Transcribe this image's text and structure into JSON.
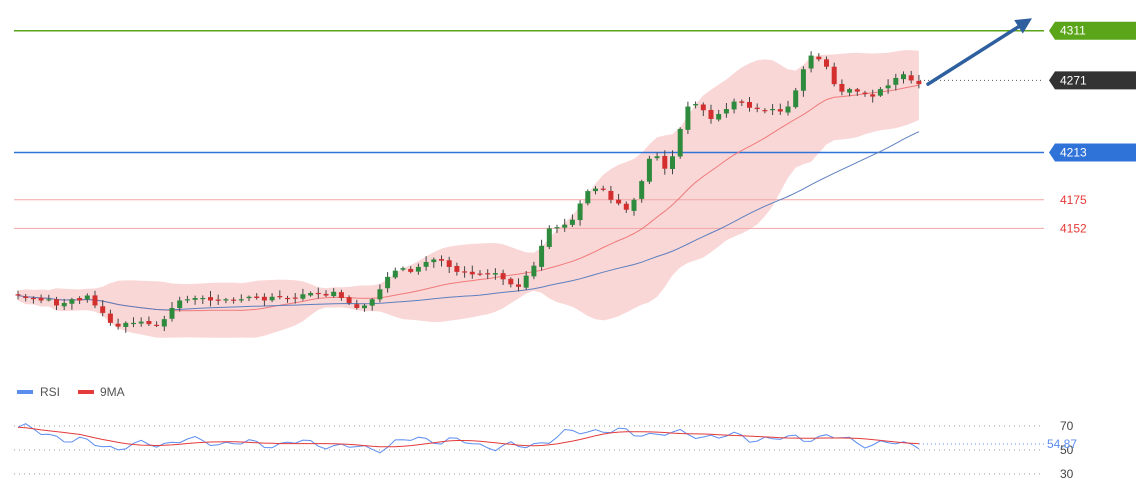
{
  "chart_data": {
    "type": "candlestick",
    "price_ylim": [
      4059,
      4318
    ],
    "levels": [
      {
        "name": "resistance-4311",
        "value": 4311,
        "label": "4311",
        "color": "#5aa51a",
        "style": "tag",
        "text_color": "#ffffff"
      },
      {
        "name": "resistance-4271",
        "value": 4271,
        "label": "4271",
        "color": "#333333",
        "style": "dotted-tag",
        "text_color": "#ffffff"
      },
      {
        "name": "support-4213",
        "value": 4213,
        "label": "4213",
        "color": "#2f73d9",
        "style": "tag",
        "text_color": "#ffffff"
      },
      {
        "name": "support-4175",
        "value": 4175,
        "label": "4175",
        "color": "#f2a6a6",
        "style": "text",
        "text_color": "#e53935"
      },
      {
        "name": "support-4152",
        "value": 4152,
        "label": "4152",
        "color": "#f2a6a6",
        "style": "text",
        "text_color": "#e53935"
      }
    ],
    "close_series": [
      4098,
      4096,
      4096,
      4094,
      4095,
      4090,
      4092,
      4095,
      4094,
      4098,
      4090,
      4084,
      4076,
      4073,
      4076,
      4076,
      4077,
      4075,
      4074,
      4079,
      4088,
      4094,
      4095,
      4096,
      4096,
      4094,
      4094,
      4095,
      4094,
      4095,
      4097,
      4096,
      4094,
      4097,
      4097,
      4096,
      4096,
      4099,
      4100,
      4100,
      4098,
      4101,
      4096,
      4092,
      4088,
      4090,
      4095,
      4103,
      4113,
      4118,
      4120,
      4117,
      4121,
      4125,
      4127,
      4126,
      4121,
      4117,
      4117,
      4115,
      4115,
      4115,
      4116,
      4111,
      4107,
      4105,
      4114,
      4122,
      4138,
      4152,
      4153,
      4155,
      4159,
      4172,
      4182,
      4184,
      4183,
      4175,
      4172,
      4167,
      4175,
      4190,
      4208,
      4210,
      4200,
      4210,
      4232,
      4250,
      4252,
      4247,
      4240,
      4244,
      4248,
      4254,
      4253,
      4249,
      4248,
      4247,
      4248,
      4246,
      4250,
      4263,
      4280,
      4291,
      4288,
      4282,
      4268,
      4262,
      4264,
      4262,
      4260,
      4258,
      4264,
      4267,
      4273,
      4276,
      4271,
      4268
    ],
    "candles_ohlc": "derived from close_series",
    "indicators": {
      "bollinger_bands": {
        "color": "#f8caca",
        "period": 20
      },
      "moving_average_fast": {
        "color": "#f07a7a"
      },
      "moving_average_slow": {
        "color": "#5d7fbf"
      }
    },
    "forecast_arrow": {
      "from_value": 4268,
      "to_value": 4321,
      "color": "#2e5f9e"
    },
    "rsi": {
      "label": "RSI",
      "ma_label": "9MA",
      "value_label": "54.87",
      "rsi_color": "#5b8def",
      "ma_color": "#e33a3a",
      "ylim": [
        30,
        70
      ],
      "ticks": [
        {
          "label": "70",
          "value": 70
        },
        {
          "label": "50",
          "value": 50
        },
        {
          "label": "30",
          "value": 30
        }
      ],
      "values": [
        69,
        68,
        66,
        64,
        63,
        62,
        60,
        58,
        57,
        56,
        55,
        54,
        53,
        52,
        53,
        53,
        54,
        55,
        55,
        56,
        57,
        58,
        58,
        57,
        57,
        57,
        56,
        56,
        56,
        55,
        55,
        55,
        55,
        55,
        55,
        56,
        56,
        56,
        55,
        55,
        55,
        54,
        53,
        52,
        52,
        51,
        51,
        52,
        54,
        56,
        57,
        58,
        59,
        59,
        59,
        58,
        58,
        57,
        56,
        55,
        54,
        54,
        53,
        53,
        53,
        52,
        53,
        55,
        57,
        59,
        61,
        63,
        64,
        65,
        66,
        67,
        67,
        66,
        65,
        64,
        63,
        64,
        64,
        64,
        64,
        63,
        63,
        63,
        63,
        62,
        62,
        61,
        61,
        61,
        61,
        60,
        60,
        60,
        59,
        59,
        59,
        60,
        60,
        61,
        61,
        61,
        60,
        59,
        58,
        57,
        56,
        55,
        55,
        55,
        55,
        55,
        55,
        55
      ]
    }
  }
}
